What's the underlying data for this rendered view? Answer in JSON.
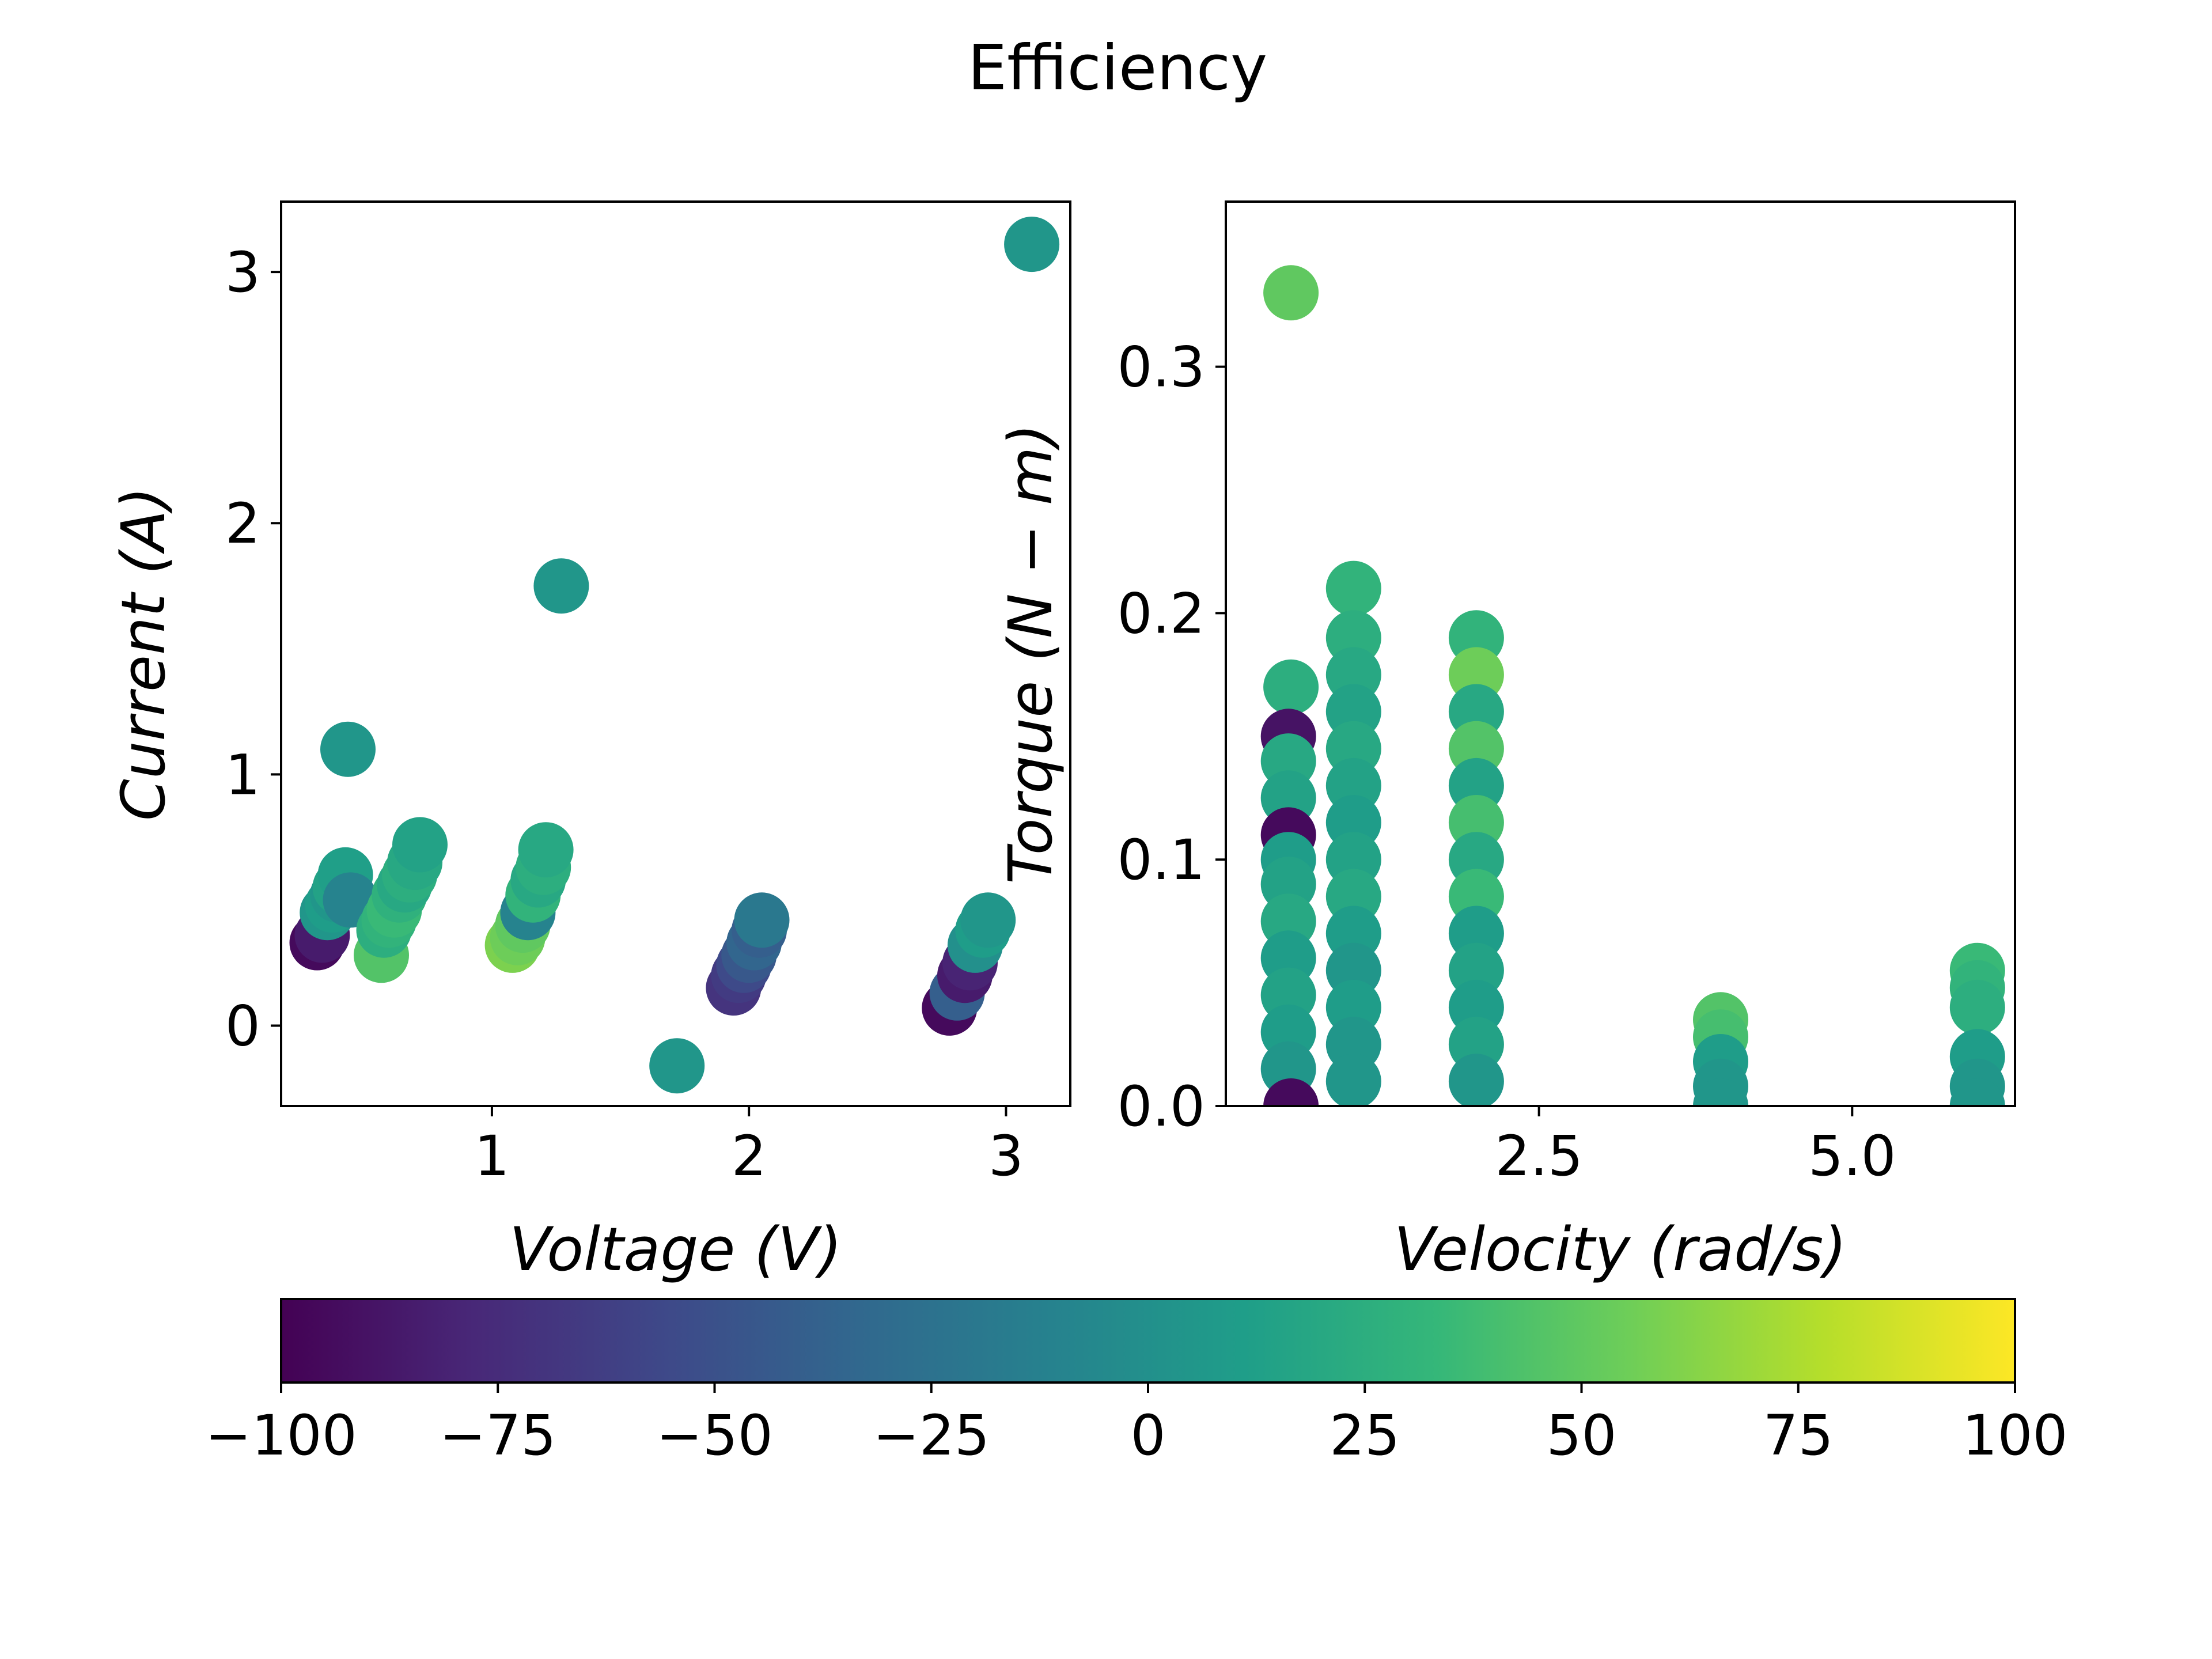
{
  "chart_data": {
    "title": "Efficiency",
    "colormap": "viridis",
    "colorbar": {
      "min": -100,
      "max": 100,
      "ticks": [
        "−100",
        "−75",
        "−50",
        "−25",
        "0",
        "25",
        "50",
        "75",
        "100"
      ],
      "orientation": "horizontal",
      "placement": "bottom",
      "stops": [
        "#440154",
        "#482878",
        "#3e4989",
        "#31688e",
        "#26828e",
        "#1f9e89",
        "#35b779",
        "#6ece58",
        "#b5de2b",
        "#fde725"
      ]
    },
    "panels": [
      {
        "type": "scatter",
        "xlabel": "Voltage (V)",
        "ylabel": "Current (A)",
        "xlim": [
          0.18,
          3.25
        ],
        "ylim": [
          -0.32,
          3.28
        ],
        "xticks": [
          1,
          2,
          3
        ],
        "yticks": [
          0,
          1,
          2,
          3
        ],
        "points": [
          {
            "x": 0.32,
            "y": 0.33,
            "c": -95
          },
          {
            "x": 0.34,
            "y": 0.36,
            "c": -85
          },
          {
            "x": 0.36,
            "y": 0.45,
            "c": 5
          },
          {
            "x": 0.38,
            "y": 0.48,
            "c": 10
          },
          {
            "x": 0.4,
            "y": 0.52,
            "c": 5
          },
          {
            "x": 0.41,
            "y": 0.55,
            "c": 15
          },
          {
            "x": 0.43,
            "y": 0.6,
            "c": 12
          },
          {
            "x": 0.45,
            "y": 0.5,
            "c": -10
          },
          {
            "x": 0.44,
            "y": 1.1,
            "c": 5
          },
          {
            "x": 0.57,
            "y": 0.28,
            "c": 45
          },
          {
            "x": 0.58,
            "y": 0.38,
            "c": 25
          },
          {
            "x": 0.6,
            "y": 0.42,
            "c": 30
          },
          {
            "x": 0.62,
            "y": 0.46,
            "c": 35
          },
          {
            "x": 0.64,
            "y": 0.52,
            "c": 28
          },
          {
            "x": 0.66,
            "y": 0.56,
            "c": 20
          },
          {
            "x": 0.68,
            "y": 0.6,
            "c": 25
          },
          {
            "x": 0.7,
            "y": 0.65,
            "c": 20
          },
          {
            "x": 0.72,
            "y": 0.72,
            "c": 15
          },
          {
            "x": 1.08,
            "y": 0.32,
            "c": 60
          },
          {
            "x": 1.1,
            "y": 0.35,
            "c": 55
          },
          {
            "x": 1.12,
            "y": 0.4,
            "c": 50
          },
          {
            "x": 1.14,
            "y": 0.45,
            "c": -10
          },
          {
            "x": 1.16,
            "y": 0.52,
            "c": 30
          },
          {
            "x": 1.18,
            "y": 0.58,
            "c": 20
          },
          {
            "x": 1.2,
            "y": 0.63,
            "c": 25
          },
          {
            "x": 1.21,
            "y": 0.7,
            "c": 20
          },
          {
            "x": 1.27,
            "y": 1.75,
            "c": 5
          },
          {
            "x": 1.72,
            "y": -0.16,
            "c": 5
          },
          {
            "x": 1.94,
            "y": 0.15,
            "c": -70
          },
          {
            "x": 1.96,
            "y": 0.2,
            "c": -65
          },
          {
            "x": 1.98,
            "y": 0.24,
            "c": -55
          },
          {
            "x": 2.0,
            "y": 0.28,
            "c": -45
          },
          {
            "x": 2.02,
            "y": 0.33,
            "c": -35
          },
          {
            "x": 2.04,
            "y": 0.38,
            "c": -40
          },
          {
            "x": 2.05,
            "y": 0.42,
            "c": -20
          },
          {
            "x": 2.78,
            "y": 0.07,
            "c": -95
          },
          {
            "x": 2.81,
            "y": 0.13,
            "c": -40
          },
          {
            "x": 2.84,
            "y": 0.2,
            "c": -85
          },
          {
            "x": 2.86,
            "y": 0.25,
            "c": -80
          },
          {
            "x": 2.88,
            "y": 0.32,
            "c": 0
          },
          {
            "x": 2.91,
            "y": 0.38,
            "c": 10
          },
          {
            "x": 2.93,
            "y": 0.42,
            "c": 5
          },
          {
            "x": 3.1,
            "y": 3.11,
            "c": 5
          }
        ]
      },
      {
        "type": "scatter",
        "xlabel": "Velocity (rad/s)",
        "ylabel": "Torque (N − m)",
        "xlim": [
          0.0,
          6.3
        ],
        "ylim": [
          0.0,
          0.367
        ],
        "xticks": [
          2.5,
          5.0
        ],
        "xtick_labels": [
          "2.5",
          "5.0"
        ],
        "yticks": [
          0.0,
          0.1,
          0.2,
          0.3
        ],
        "ytick_labels": [
          "0.0",
          "0.1",
          "0.2",
          "0.3"
        ],
        "points": [
          {
            "x": 0.52,
            "y": 0.33,
            "c": 50
          },
          {
            "x": 0.52,
            "y": 0.17,
            "c": 25
          },
          {
            "x": 0.5,
            "y": 0.15,
            "c": -90
          },
          {
            "x": 0.5,
            "y": 0.14,
            "c": 20
          },
          {
            "x": 0.5,
            "y": 0.125,
            "c": 15
          },
          {
            "x": 0.5,
            "y": 0.11,
            "c": -95
          },
          {
            "x": 0.5,
            "y": 0.1,
            "c": 10
          },
          {
            "x": 0.5,
            "y": 0.09,
            "c": 15
          },
          {
            "x": 0.5,
            "y": 0.075,
            "c": 20
          },
          {
            "x": 0.5,
            "y": 0.06,
            "c": 10
          },
          {
            "x": 0.5,
            "y": 0.045,
            "c": 15
          },
          {
            "x": 0.5,
            "y": 0.03,
            "c": 10
          },
          {
            "x": 0.5,
            "y": 0.015,
            "c": 5
          },
          {
            "x": 0.52,
            "y": 0.0,
            "c": -95
          },
          {
            "x": 1.02,
            "y": 0.21,
            "c": 30
          },
          {
            "x": 1.02,
            "y": 0.19,
            "c": 25
          },
          {
            "x": 1.02,
            "y": 0.175,
            "c": 20
          },
          {
            "x": 1.02,
            "y": 0.16,
            "c": 15
          },
          {
            "x": 1.02,
            "y": 0.145,
            "c": 20
          },
          {
            "x": 1.02,
            "y": 0.13,
            "c": 15
          },
          {
            "x": 1.02,
            "y": 0.115,
            "c": 10
          },
          {
            "x": 1.02,
            "y": 0.1,
            "c": 15
          },
          {
            "x": 1.02,
            "y": 0.085,
            "c": 20
          },
          {
            "x": 1.02,
            "y": 0.07,
            "c": 10
          },
          {
            "x": 1.02,
            "y": 0.055,
            "c": 5
          },
          {
            "x": 1.02,
            "y": 0.04,
            "c": 10
          },
          {
            "x": 1.02,
            "y": 0.025,
            "c": 5
          },
          {
            "x": 1.02,
            "y": 0.01,
            "c": 5
          },
          {
            "x": 2.0,
            "y": 0.19,
            "c": 30
          },
          {
            "x": 2.0,
            "y": 0.175,
            "c": 55
          },
          {
            "x": 2.0,
            "y": 0.16,
            "c": 20
          },
          {
            "x": 2.0,
            "y": 0.145,
            "c": 45
          },
          {
            "x": 2.0,
            "y": 0.13,
            "c": 15
          },
          {
            "x": 2.0,
            "y": 0.115,
            "c": 40
          },
          {
            "x": 2.0,
            "y": 0.1,
            "c": 20
          },
          {
            "x": 2.0,
            "y": 0.085,
            "c": 35
          },
          {
            "x": 2.0,
            "y": 0.07,
            "c": 10
          },
          {
            "x": 2.0,
            "y": 0.055,
            "c": 15
          },
          {
            "x": 2.0,
            "y": 0.04,
            "c": 10
          },
          {
            "x": 2.0,
            "y": 0.025,
            "c": 15
          },
          {
            "x": 2.0,
            "y": 0.01,
            "c": 5
          },
          {
            "x": 3.95,
            "y": 0.035,
            "c": 45
          },
          {
            "x": 3.95,
            "y": 0.028,
            "c": 40
          },
          {
            "x": 3.95,
            "y": 0.018,
            "c": 10
          },
          {
            "x": 3.95,
            "y": 0.008,
            "c": 5
          },
          {
            "x": 3.95,
            "y": 0.0,
            "c": 5
          },
          {
            "x": 6.0,
            "y": 0.055,
            "c": 35
          },
          {
            "x": 6.0,
            "y": 0.048,
            "c": 30
          },
          {
            "x": 6.0,
            "y": 0.04,
            "c": 25
          },
          {
            "x": 6.0,
            "y": 0.02,
            "c": 10
          },
          {
            "x": 6.0,
            "y": 0.008,
            "c": 5
          },
          {
            "x": 6.0,
            "y": 0.0,
            "c": 5
          }
        ]
      }
    ]
  }
}
